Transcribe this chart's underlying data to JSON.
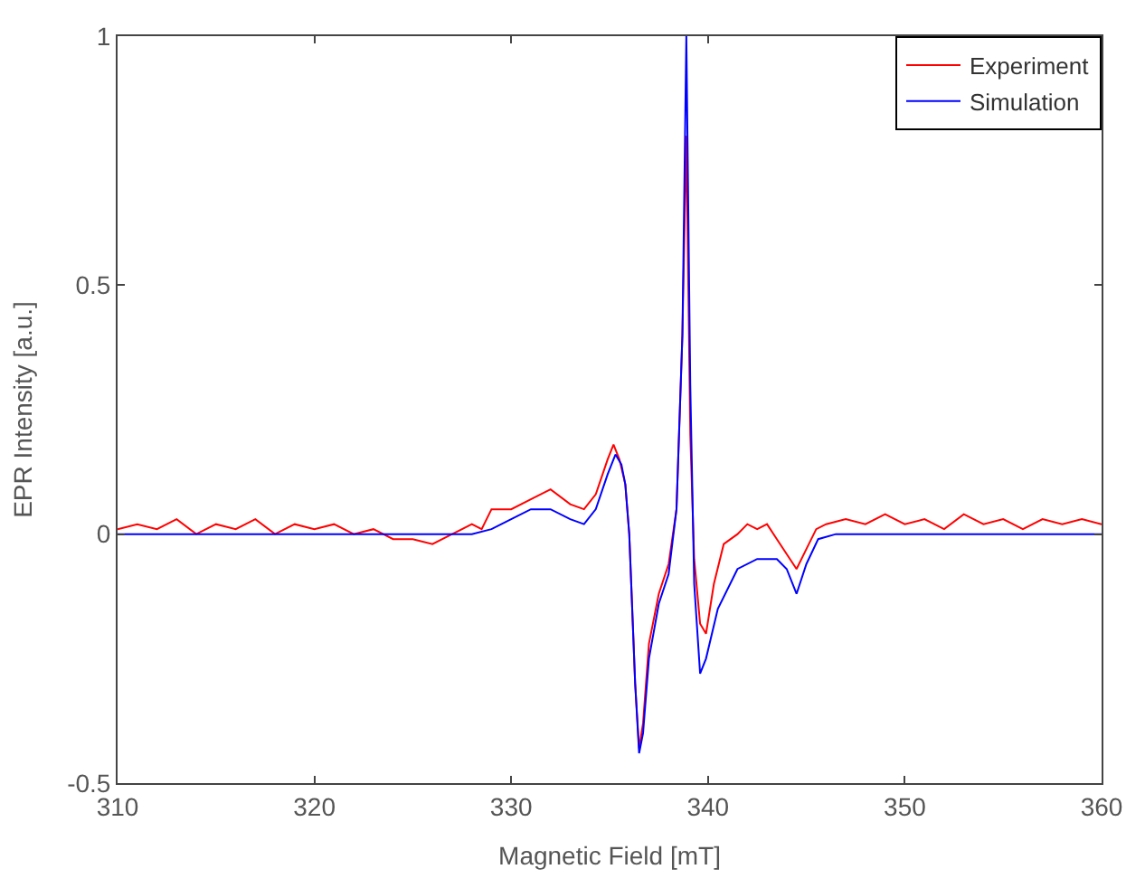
{
  "chart_data": {
    "type": "line",
    "xlabel": "Magnetic Field [mT]",
    "ylabel": "EPR Intensity [a.u.]",
    "xlim": [
      310,
      360
    ],
    "xticks": [
      310,
      320,
      330,
      340,
      350,
      360
    ],
    "ylim": [
      -0.5,
      1
    ],
    "yticks": [
      -0.5,
      0,
      0.5,
      1
    ],
    "legend": "top right",
    "marker": "none",
    "line_style": "solid",
    "series": [
      {
        "name": "Experiment",
        "color": "#ff0000",
        "x": [
          310,
          311,
          312,
          313,
          314,
          315,
          316,
          317,
          318,
          319,
          320,
          321,
          322,
          323,
          324,
          325,
          326,
          327,
          328,
          328.5,
          329,
          330,
          331,
          332,
          333,
          333.7,
          334.3,
          334.9,
          335.2,
          335.5,
          335.8,
          336.0,
          336.3,
          336.5,
          336.7,
          337.0,
          337.5,
          338.0,
          338.4,
          338.7,
          338.9,
          339.1,
          339.3,
          339.6,
          339.9,
          340.3,
          340.8,
          341.5,
          342,
          342.5,
          343,
          343.5,
          344,
          344.5,
          345,
          345.5,
          346,
          347,
          348,
          349,
          350,
          351,
          352,
          353,
          354,
          355,
          356,
          357,
          358,
          359,
          360
        ],
        "values": [
          0.01,
          0.02,
          0.01,
          0.03,
          0.0,
          0.02,
          0.01,
          0.03,
          0.0,
          0.02,
          0.01,
          0.02,
          0.0,
          0.01,
          -0.01,
          -0.01,
          -0.02,
          0.0,
          0.02,
          0.01,
          0.05,
          0.05,
          0.07,
          0.09,
          0.06,
          0.05,
          0.08,
          0.15,
          0.18,
          0.15,
          0.1,
          0.0,
          -0.3,
          -0.43,
          -0.38,
          -0.22,
          -0.12,
          -0.06,
          0.05,
          0.4,
          0.8,
          0.2,
          -0.05,
          -0.18,
          -0.2,
          -0.1,
          -0.02,
          0.0,
          0.02,
          0.01,
          0.02,
          -0.01,
          -0.04,
          -0.07,
          -0.03,
          0.01,
          0.02,
          0.03,
          0.02,
          0.04,
          0.02,
          0.03,
          0.01,
          0.04,
          0.02,
          0.03,
          0.01,
          0.03,
          0.02,
          0.03,
          0.02
        ]
      },
      {
        "name": "Simulation",
        "color": "#0000ff",
        "x": [
          310,
          325,
          328,
          329,
          330,
          331,
          332,
          333,
          333.7,
          334.3,
          334.9,
          335.3,
          335.6,
          335.8,
          336.0,
          336.3,
          336.5,
          336.7,
          337.0,
          337.5,
          338.0,
          338.4,
          338.7,
          338.9,
          339.1,
          339.3,
          339.6,
          339.9,
          340.5,
          341.5,
          342.5,
          343.5,
          344.0,
          344.5,
          345.0,
          345.6,
          346.5,
          360
        ],
        "values": [
          0,
          0,
          0,
          0.01,
          0.03,
          0.05,
          0.05,
          0.03,
          0.02,
          0.05,
          0.12,
          0.16,
          0.14,
          0.1,
          0.0,
          -0.3,
          -0.44,
          -0.4,
          -0.25,
          -0.14,
          -0.08,
          0.05,
          0.4,
          1.0,
          0.3,
          -0.1,
          -0.28,
          -0.25,
          -0.15,
          -0.07,
          -0.05,
          -0.05,
          -0.07,
          -0.12,
          -0.06,
          -0.01,
          0,
          0
        ]
      }
    ]
  }
}
